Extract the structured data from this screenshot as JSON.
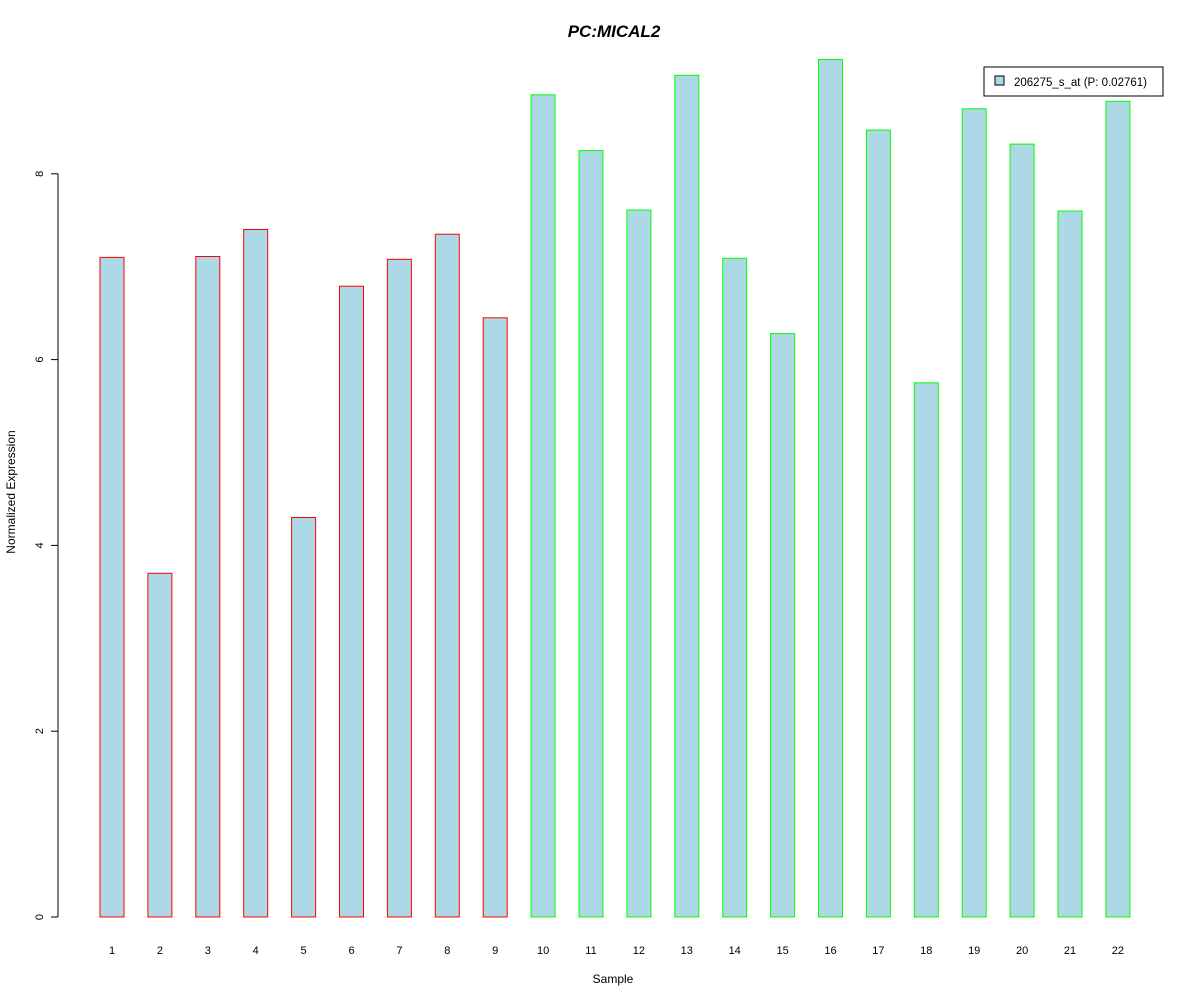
{
  "chart_data": {
    "type": "bar",
    "title": "PC:MICAL2",
    "xlabel": "Sample",
    "ylabel": "Normalized Expression",
    "ylim": [
      0,
      9.2
    ],
    "yticks": [
      0,
      2,
      4,
      6,
      8
    ],
    "categories": [
      "1",
      "2",
      "3",
      "4",
      "5",
      "6",
      "7",
      "8",
      "9",
      "10",
      "11",
      "12",
      "13",
      "14",
      "15",
      "16",
      "17",
      "18",
      "19",
      "20",
      "21",
      "22"
    ],
    "series": [
      {
        "name": "206275_s_at (P: 0.02761)",
        "values": [
          7.1,
          3.7,
          7.11,
          7.4,
          4.3,
          6.79,
          7.08,
          7.35,
          6.45,
          8.85,
          8.25,
          7.61,
          9.06,
          7.09,
          6.28,
          9.23,
          8.47,
          5.75,
          8.7,
          8.32,
          7.6,
          8.78
        ],
        "fill_color": "#add8e6"
      }
    ],
    "group_border_colors": [
      "#ff0000",
      "#ff0000",
      "#ff0000",
      "#ff0000",
      "#ff0000",
      "#ff0000",
      "#ff0000",
      "#ff0000",
      "#ff0000",
      "#00ff00",
      "#00ff00",
      "#00ff00",
      "#00ff00",
      "#00ff00",
      "#00ff00",
      "#00ff00",
      "#00ff00",
      "#00ff00",
      "#00ff00",
      "#00ff00",
      "#00ff00",
      "#00ff00"
    ],
    "title_color": "#0000cc",
    "legend_position": "top-right",
    "grid": false
  }
}
